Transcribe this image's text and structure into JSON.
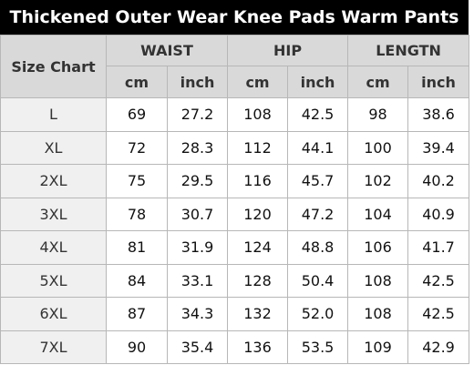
{
  "title": "Thickened Outer Wear Knee Pads Warm Pants",
  "table": {
    "corner": "Size Chart",
    "groups": [
      "WAIST",
      "HIP",
      "LENGTN"
    ],
    "units": [
      "cm",
      "inch",
      "cm",
      "inch",
      "cm",
      "inch"
    ],
    "rows": [
      [
        "L",
        "69",
        "27.2",
        "108",
        "42.5",
        "98",
        "38.6"
      ],
      [
        "XL",
        "72",
        "28.3",
        "112",
        "44.1",
        "100",
        "39.4"
      ],
      [
        "2XL",
        "75",
        "29.5",
        "116",
        "45.7",
        "102",
        "40.2"
      ],
      [
        "3XL",
        "78",
        "30.7",
        "120",
        "47.2",
        "104",
        "40.9"
      ],
      [
        "4XL",
        "81",
        "31.9",
        "124",
        "48.8",
        "106",
        "41.7"
      ],
      [
        "5XL",
        "84",
        "33.1",
        "128",
        "50.4",
        "108",
        "42.5"
      ],
      [
        "6XL",
        "87",
        "34.3",
        "132",
        "52.0",
        "108",
        "42.5"
      ],
      [
        "7XL",
        "90",
        "35.4",
        "136",
        "53.5",
        "109",
        "42.9"
      ]
    ]
  }
}
